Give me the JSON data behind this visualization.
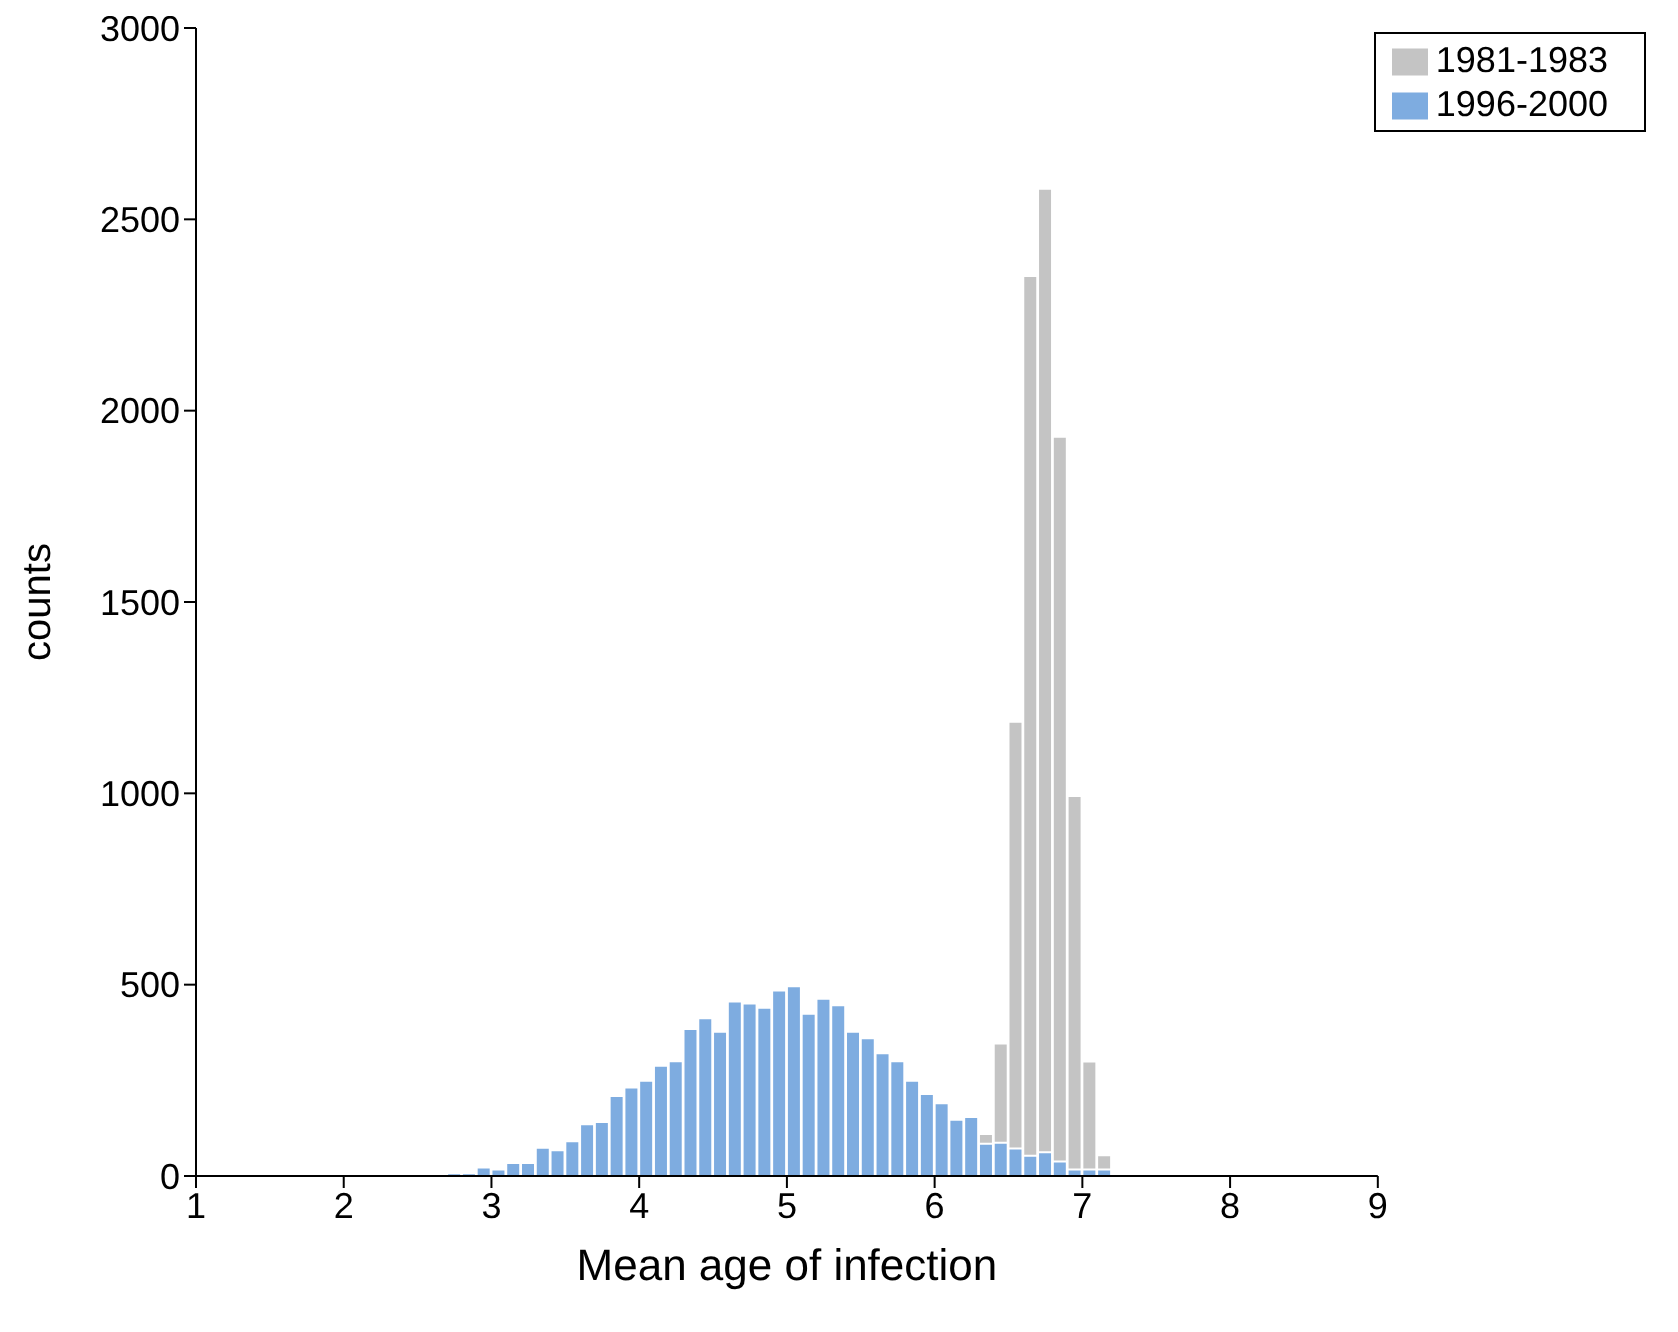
{
  "chart_data": {
    "type": "histogram",
    "xlabel": "Mean age of infection",
    "ylabel": "counts",
    "bins": [
      2.7,
      2.8,
      2.9,
      3.0,
      3.1,
      3.2,
      3.3,
      3.4,
      3.5,
      3.6,
      3.7,
      3.8,
      3.9,
      4.0,
      4.1,
      4.2,
      4.3,
      4.4,
      4.5,
      4.6,
      4.7,
      4.8,
      4.9,
      5.0,
      5.1,
      5.2,
      5.3,
      5.4,
      5.5,
      5.6,
      5.7,
      5.8,
      5.9,
      6.0,
      6.1,
      6.2,
      6.3,
      6.4,
      6.5,
      6.6,
      6.7,
      6.8,
      6.9,
      7.0,
      7.1,
      7.2,
      7.3
    ],
    "series": [
      {
        "name": "1981-1983",
        "color": "#c4c4c4",
        "values": [
          0,
          0,
          0,
          0,
          0,
          0,
          0,
          0,
          0,
          0,
          0,
          0,
          0,
          0,
          0,
          0,
          0,
          0,
          0,
          0,
          0,
          0,
          0,
          0,
          0,
          0,
          0,
          0,
          0,
          0,
          0,
          0,
          0,
          0,
          0,
          0,
          110,
          346,
          1187,
          2352,
          2580,
          1932,
          993,
          299,
          54,
          0
        ]
      },
      {
        "name": "1996-2000",
        "color": "#7eace0",
        "values": [
          7,
          7,
          22,
          17,
          34,
          34,
          74,
          67,
          91,
          135,
          141,
          209,
          231,
          249,
          288,
          300,
          384,
          412,
          377,
          456,
          451,
          440,
          485,
          496,
          424,
          463,
          446,
          377,
          360,
          321,
          300,
          249,
          214,
          190,
          147,
          154,
          84,
          87,
          72,
          53,
          62,
          38,
          17,
          17,
          17,
          3
        ]
      }
    ],
    "xlim": [
      1,
      9
    ],
    "xticks": [
      1,
      2,
      3,
      4,
      5,
      6,
      7,
      8,
      9
    ],
    "ylim": [
      0,
      3000
    ],
    "yticks": [
      0,
      500,
      1000,
      1500,
      2000,
      2500,
      3000
    ],
    "grid": false,
    "legend": "top right"
  }
}
